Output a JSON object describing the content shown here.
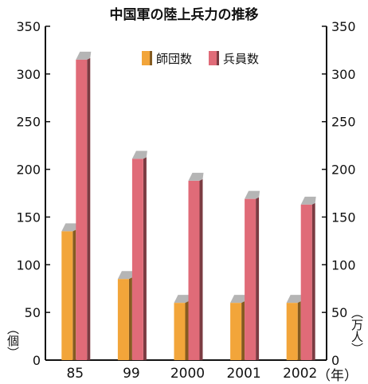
{
  "chart_data": {
    "type": "bar",
    "title": "中国軍の陸上兵力の推移",
    "categories": [
      "85",
      "99",
      "2000",
      "2001",
      "2002"
    ],
    "series": [
      {
        "name": "師団数",
        "axis": "left",
        "color": "#f2a53a",
        "values": [
          135,
          85,
          60,
          60,
          60
        ]
      },
      {
        "name": "兵員数",
        "axis": "right",
        "color": "#e06b78",
        "values": [
          315,
          211,
          188,
          169,
          163
        ]
      }
    ],
    "left_axis": {
      "unit_label": "（個）",
      "ticks": [
        "0",
        "50",
        "100",
        "150",
        "200",
        "250",
        "300",
        "350"
      ],
      "ylim": [
        0,
        350
      ]
    },
    "right_axis": {
      "unit_label": "（万人）",
      "ticks": [
        "0",
        "50",
        "100",
        "150",
        "200",
        "250",
        "300",
        "350"
      ],
      "ylim": [
        0,
        350
      ]
    },
    "x_axis_unit": "（年）",
    "legend_position": "top-center",
    "grid": false
  }
}
